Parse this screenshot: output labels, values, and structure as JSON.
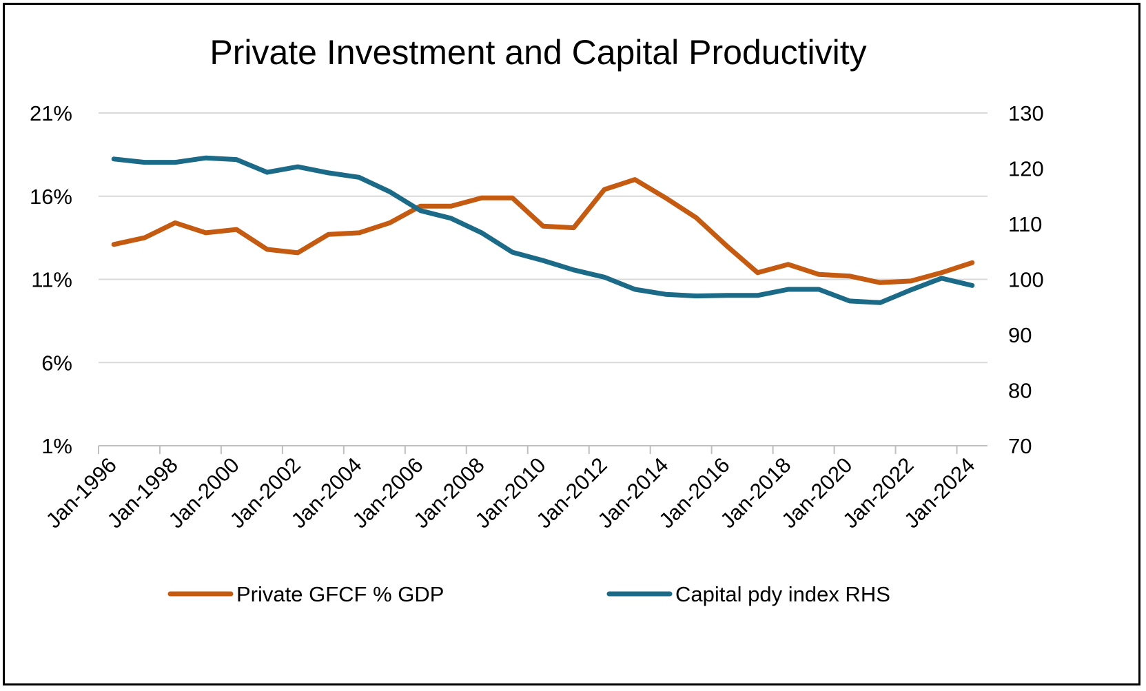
{
  "chart_data": {
    "type": "line",
    "title": "Private Investment and Capital Productivity",
    "x": [
      "1996",
      "1997",
      "1998",
      "1999",
      "2000",
      "2001",
      "2002",
      "2003",
      "2004",
      "2005",
      "2006",
      "2007",
      "2008",
      "2009",
      "2010",
      "2011",
      "2012",
      "2013",
      "2014",
      "2015",
      "2016",
      "2017",
      "2018",
      "2019",
      "2020",
      "2021",
      "2022",
      "2023",
      "2024"
    ],
    "x_tick_labels": [
      "Jan-1996",
      "Jan-1998",
      "Jan-2000",
      "Jan-2002",
      "Jan-2004",
      "Jan-2006",
      "Jan-2008",
      "Jan-2010",
      "Jan-2012",
      "Jan-2014",
      "Jan-2016",
      "Jan-2018",
      "Jan-2020",
      "Jan-2022",
      "Jan-2024"
    ],
    "y_left": {
      "ticks": [
        "21%",
        "16%",
        "11%",
        "6%",
        "1%"
      ],
      "range": [
        1,
        21
      ]
    },
    "y_right": {
      "ticks": [
        "130",
        "120",
        "110",
        "100",
        "90",
        "80",
        "70"
      ],
      "range": [
        70,
        130
      ]
    },
    "grid": true,
    "legend_position": "bottom",
    "series": [
      {
        "name": "Private GFCF % GDP",
        "axis": "left",
        "color": "#C55A11",
        "values": [
          13.1,
          13.5,
          14.4,
          13.8,
          14.0,
          12.8,
          12.6,
          13.7,
          13.8,
          14.4,
          15.4,
          15.4,
          15.9,
          15.9,
          14.2,
          14.1,
          16.4,
          17.0,
          15.9,
          14.7,
          13.0,
          11.4,
          11.9,
          11.3,
          11.2,
          10.8,
          10.9,
          11.4,
          12.0
        ]
      },
      {
        "name": "Capital pdy index RHS",
        "axis": "right",
        "color": "#1B6A87",
        "values": [
          121.7,
          121.1,
          121.1,
          121.9,
          121.6,
          119.3,
          120.3,
          119.2,
          118.4,
          115.8,
          112.4,
          111.0,
          108.4,
          104.9,
          103.4,
          101.7,
          100.4,
          98.2,
          97.3,
          97.0,
          97.1,
          97.1,
          98.2,
          98.2,
          96.1,
          95.8,
          98.1,
          100.2,
          98.9
        ]
      }
    ]
  }
}
